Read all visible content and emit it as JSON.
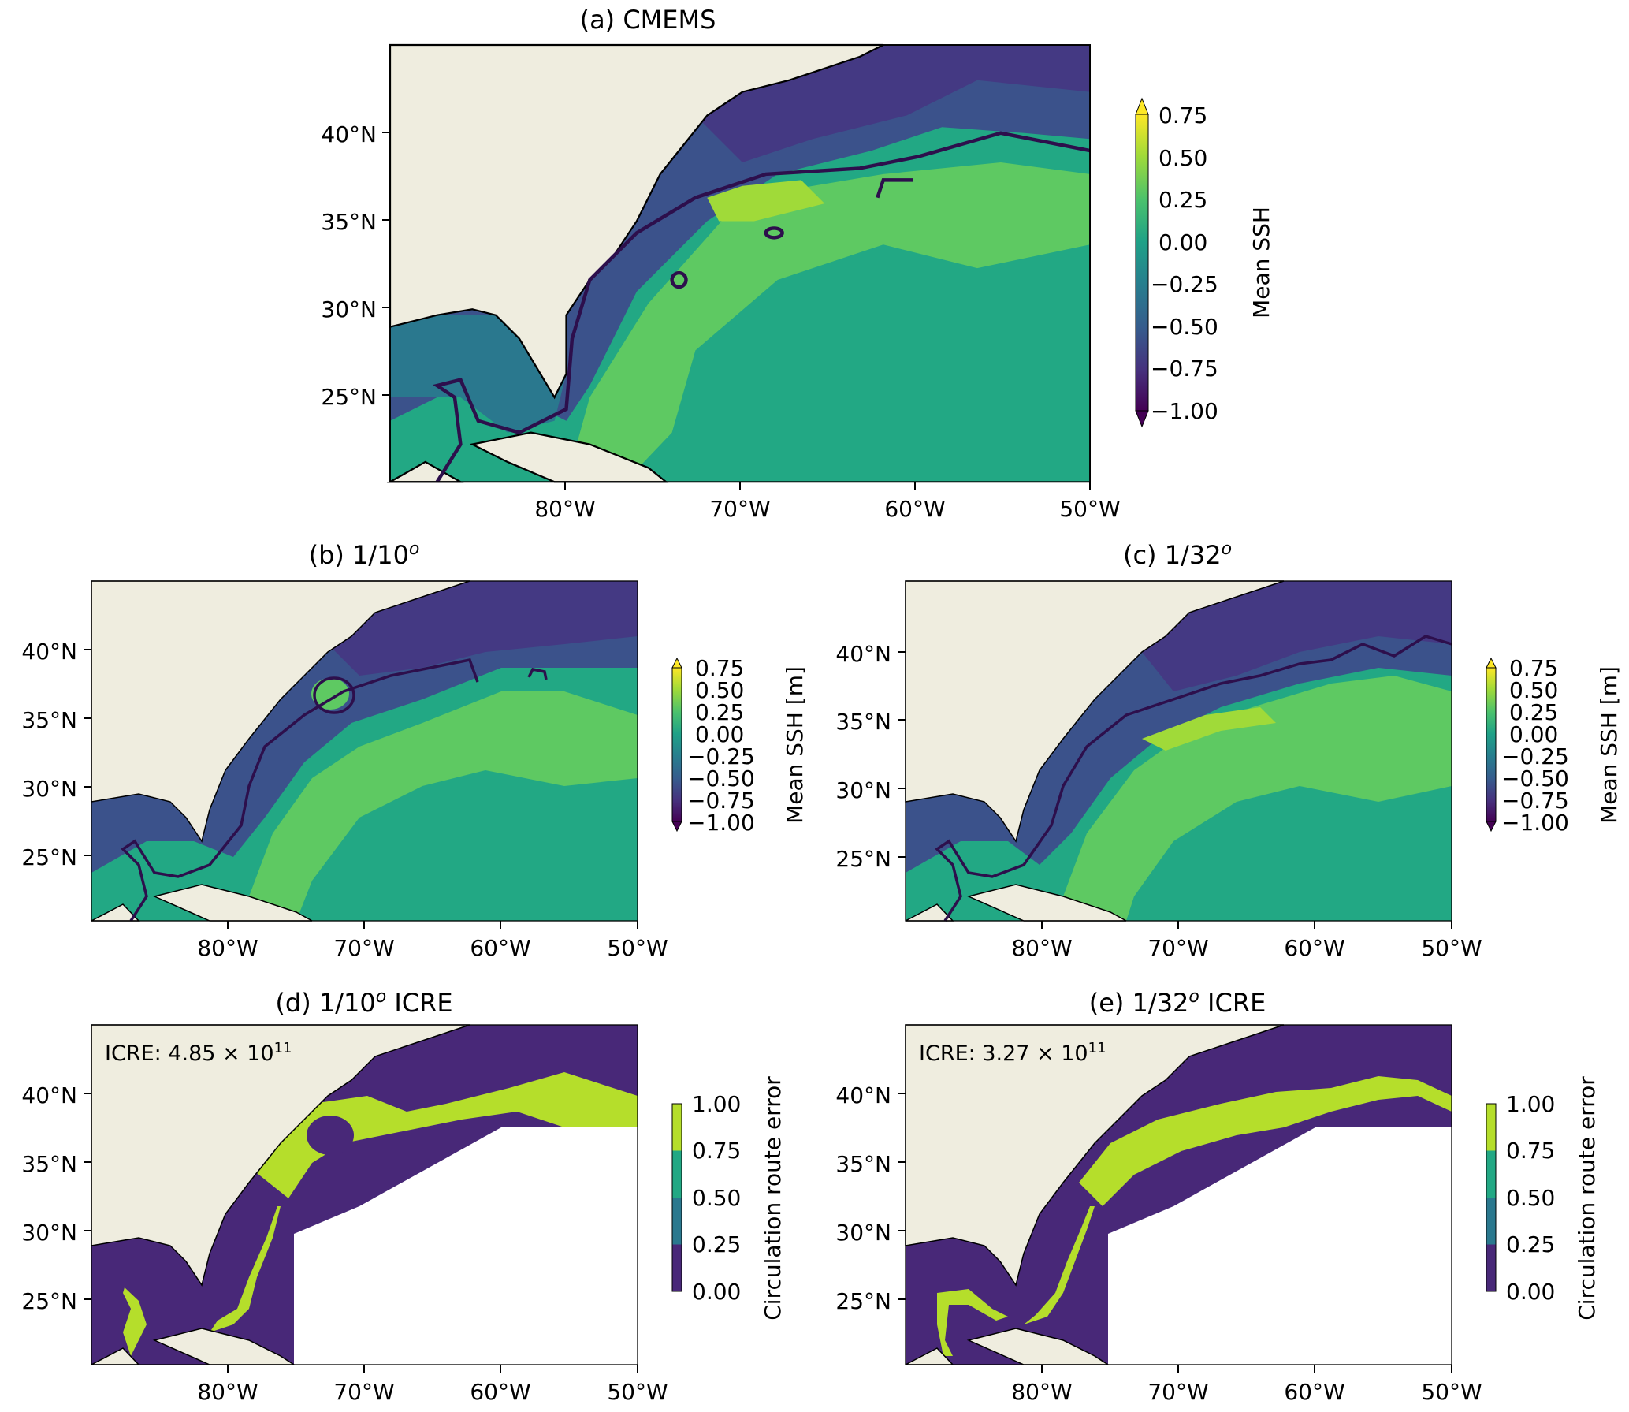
{
  "panels": {
    "a": {
      "title": "(a) CMEMS",
      "yticks": [
        "40°N",
        "35°N",
        "30°N",
        "25°N"
      ],
      "xticks": [
        "80°W",
        "70°W",
        "60°W",
        "50°W"
      ],
      "colorbar": {
        "label": "Mean SSH",
        "ticks": [
          "0.75",
          "0.50",
          "0.25",
          "0.00",
          "−0.25",
          "−0.50",
          "−0.75",
          "−1.00"
        ]
      }
    },
    "b": {
      "title_main": "(b) 1/10",
      "title_sup": "o",
      "yticks": [
        "40°N",
        "35°N",
        "30°N",
        "25°N"
      ],
      "xticks": [
        "80°W",
        "70°W",
        "60°W",
        "50°W"
      ],
      "colorbar": {
        "label": "Mean SSH [m]",
        "ticks": [
          "0.75",
          "0.50",
          "0.25",
          "0.00",
          "−0.25",
          "−0.50",
          "−0.75",
          "−1.00"
        ]
      }
    },
    "c": {
      "title_main": "(c) 1/32",
      "title_sup": "o",
      "yticks": [
        "40°N",
        "35°N",
        "30°N",
        "25°N"
      ],
      "xticks": [
        "80°W",
        "70°W",
        "60°W",
        "50°W"
      ],
      "colorbar": {
        "label": "Mean SSH [m]",
        "ticks": [
          "0.75",
          "0.50",
          "0.25",
          "0.00",
          "−0.25",
          "−0.50",
          "−0.75",
          "−1.00"
        ]
      }
    },
    "d": {
      "title_main": "(d) 1/10",
      "title_sup": "o",
      "title_rest": " ICRE",
      "annotation_main": "ICRE: 4.85 × 10",
      "annotation_sup": "11",
      "yticks": [
        "40°N",
        "35°N",
        "30°N",
        "25°N"
      ],
      "xticks": [
        "80°W",
        "70°W",
        "60°W",
        "50°W"
      ],
      "colorbar": {
        "label": "Circulation route error",
        "ticks": [
          "1.00",
          "0.75",
          "0.50",
          "0.25",
          "0.00"
        ]
      }
    },
    "e": {
      "title_main": "(e) 1/32",
      "title_sup": "o",
      "title_rest": " ICRE",
      "annotation_main": "ICRE: 3.27 × 10",
      "annotation_sup": "11",
      "yticks": [
        "40°N",
        "35°N",
        "30°N",
        "25°N"
      ],
      "xticks": [
        "80°W",
        "70°W",
        "60°W",
        "50°W"
      ],
      "colorbar": {
        "label": "Circulation route error",
        "ticks": [
          "1.00",
          "0.75",
          "0.50",
          "0.25",
          "0.00"
        ]
      }
    }
  },
  "colors": {
    "land": "#efeddf",
    "ocean_high": "#5ec962",
    "ocean_mid": "#22a884",
    "ocean_low": "#2a788e",
    "ocean_lower": "#3b528b",
    "ocean_lowest": "#443983",
    "contour": "#2d0f4c",
    "error_zero": "#482878",
    "error_one": "#b5de2b",
    "masked": "#ffffff"
  }
}
